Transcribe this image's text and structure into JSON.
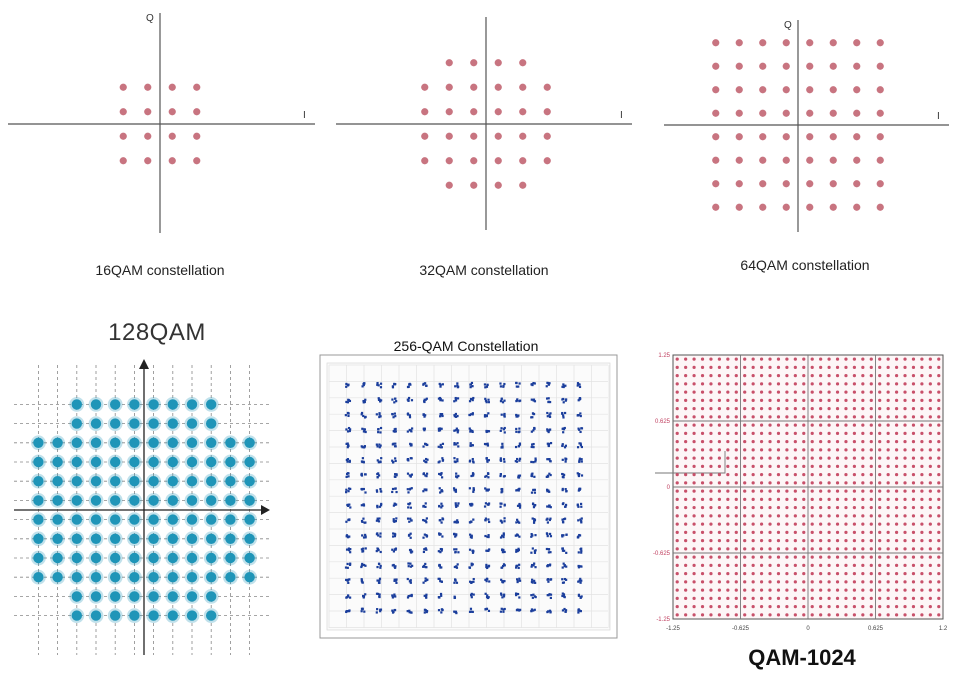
{
  "panels": {
    "qam16": {
      "caption": "16QAM constellation",
      "i_label": "I",
      "q_label": "Q",
      "grid": 4,
      "dot_color": "#c87480"
    },
    "qam32": {
      "caption": "32QAM constellation",
      "i_label": "I",
      "q_label": "",
      "grid": 6,
      "corners_removed": true,
      "dot_color": "#c87480"
    },
    "qam64": {
      "caption": "64QAM constellation",
      "i_label": "I",
      "q_label": "Q",
      "grid": 8,
      "dot_color": "#c87480"
    },
    "qam128": {
      "title": "128QAM",
      "grid": 12,
      "dot_color": "#1f95b8"
    },
    "qam256": {
      "title": "256-QAM Constellation",
      "grid": 16,
      "dot_color": "#1b3e9c"
    },
    "qam1024": {
      "title": "QAM-1024",
      "grid": 32,
      "dot_color": "#c8506a",
      "x_ticks": [
        "-1.25",
        "-0.625",
        "0",
        "0.625",
        "1.2"
      ],
      "y_ticks": [
        "1.25",
        "0.625",
        "0",
        "-0.625",
        "-1.25"
      ]
    }
  }
}
